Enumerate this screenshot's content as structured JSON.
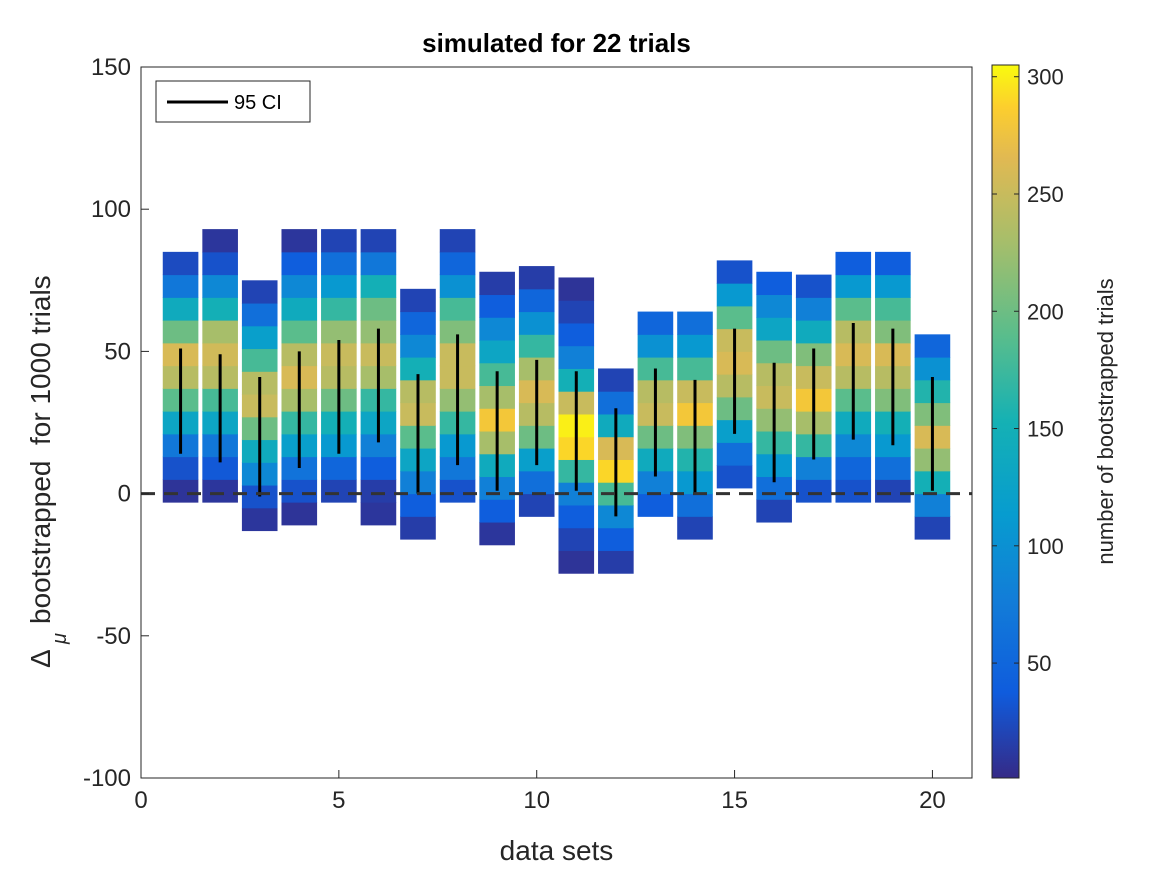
{
  "chart_data": {
    "type": "heatmap",
    "title": "simulated for 22 trials",
    "xlabel": "data sets",
    "ylabel": "bootstrapped  for 1000 trials",
    "ylabel_symbol": "Δ",
    "ylabel_subscript": "μ",
    "xlim": [
      0,
      21
    ],
    "ylim": [
      -100,
      150
    ],
    "xticks": [
      0,
      5,
      10,
      15,
      20
    ],
    "yticks": [
      -100,
      -50,
      0,
      50,
      100,
      150
    ],
    "bin_width_y": 8,
    "bar_half_width": 0.45,
    "reference_line_y": 0,
    "colorbar": {
      "label": "number of bootstrapped trials",
      "range": [
        1,
        305
      ],
      "ticks": [
        50,
        100,
        150,
        200,
        250,
        300
      ],
      "colormap": "parula"
    },
    "legend": {
      "label": "95 CI",
      "location": "top-left"
    },
    "columns": [
      {
        "x": 1,
        "bins_start": -3,
        "counts": [
          8,
          30,
          70,
          130,
          190,
          240,
          260,
          200,
          140,
          70,
          25
        ],
        "ci": [
          14,
          51
        ]
      },
      {
        "x": 2,
        "bins_start": -3,
        "counts": [
          10,
          35,
          70,
          130,
          180,
          240,
          255,
          230,
          150,
          90,
          30,
          10
        ],
        "ci": [
          11,
          49
        ]
      },
      {
        "x": 3,
        "bins_start": -13,
        "counts": [
          10,
          30,
          90,
          140,
          200,
          250,
          240,
          180,
          120,
          60,
          20
        ],
        "ci": [
          -1,
          41
        ]
      },
      {
        "x": 4,
        "bins_start": -11,
        "counts": [
          8,
          30,
          65,
          120,
          170,
          230,
          260,
          240,
          190,
          140,
          90,
          40,
          10
        ],
        "ci": [
          9,
          50
        ]
      },
      {
        "x": 5,
        "bins_start": -3,
        "counts": [
          20,
          50,
          110,
          150,
          200,
          240,
          250,
          220,
          170,
          110,
          60,
          20
        ],
        "ci": [
          14,
          54
        ]
      },
      {
        "x": 6,
        "bins_start": -11,
        "counts": [
          10,
          15,
          40,
          80,
          130,
          170,
          230,
          250,
          220,
          200,
          150,
          70,
          20
        ],
        "ci": [
          18,
          58
        ]
      },
      {
        "x": 7,
        "bins_start": -16,
        "counts": [
          15,
          40,
          80,
          130,
          190,
          250,
          240,
          150,
          90,
          50,
          20
        ],
        "ci": [
          0,
          42
        ]
      },
      {
        "x": 8,
        "bins_start": -3,
        "counts": [
          30,
          70,
          110,
          170,
          220,
          250,
          250,
          210,
          180,
          100,
          50,
          20
        ],
        "ci": [
          10,
          56
        ]
      },
      {
        "x": 9,
        "bins_start": -18,
        "counts": [
          10,
          40,
          80,
          140,
          230,
          280,
          230,
          180,
          130,
          90,
          40,
          15
        ],
        "ci": [
          1,
          43
        ]
      },
      {
        "x": 10,
        "bins_start": -8,
        "counts": [
          20,
          60,
          120,
          200,
          240,
          260,
          230,
          170,
          100,
          50,
          15
        ],
        "ci": [
          10,
          47
        ]
      },
      {
        "x": 11,
        "bins_start": -28,
        "counts": [
          8,
          20,
          40,
          80,
          170,
          290,
          300,
          250,
          150,
          80,
          40,
          20,
          8
        ],
        "ci": [
          1,
          43
        ]
      },
      {
        "x": 12,
        "bins_start": -28,
        "counts": [
          15,
          40,
          90,
          180,
          290,
          260,
          140,
          60,
          20
        ],
        "ci": [
          -8,
          30
        ]
      },
      {
        "x": 13,
        "bins_start": -8,
        "counts": [
          40,
          80,
          140,
          200,
          250,
          240,
          180,
          100,
          50
        ],
        "ci": [
          6,
          44
        ]
      },
      {
        "x": 14,
        "bins_start": -16,
        "counts": [
          20,
          60,
          110,
          160,
          210,
          280,
          250,
          180,
          110,
          60
        ],
        "ci": [
          0,
          40
        ]
      },
      {
        "x": 15,
        "bins_start": 2,
        "counts": [
          30,
          60,
          120,
          200,
          240,
          260,
          250,
          190,
          110,
          30
        ],
        "ci": [
          21,
          58
        ]
      },
      {
        "x": 16,
        "bins_start": -10,
        "counts": [
          20,
          60,
          110,
          170,
          220,
          250,
          240,
          200,
          130,
          90,
          40
        ],
        "ci": [
          4,
          46
        ]
      },
      {
        "x": 17,
        "bins_start": -3,
        "counts": [
          30,
          80,
          170,
          230,
          280,
          250,
          210,
          140,
          80,
          30
        ],
        "ci": [
          12,
          51
        ]
      },
      {
        "x": 18,
        "bins_start": -3,
        "counts": [
          30,
          50,
          90,
          140,
          190,
          240,
          260,
          240,
          190,
          110,
          40
        ],
        "ci": [
          19,
          60
        ]
      },
      {
        "x": 19,
        "bins_start": -3,
        "counts": [
          20,
          60,
          110,
          150,
          210,
          240,
          260,
          210,
          180,
          110,
          40
        ],
        "ci": [
          17,
          58
        ]
      },
      {
        "x": 20,
        "bins_start": -16,
        "counts": [
          20,
          80,
          150,
          220,
          260,
          210,
          160,
          100,
          50
        ],
        "ci": [
          1,
          41
        ]
      }
    ]
  }
}
